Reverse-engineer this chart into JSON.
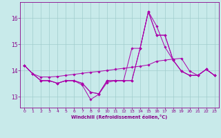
{
  "xlabel": "Windchill (Refroidissement éolien,°C)",
  "bg_color": "#c8eaea",
  "grid_color": "#a0cccc",
  "line_color": "#aa00aa",
  "xlim": [
    -0.5,
    23.5
  ],
  "ylim": [
    12.6,
    16.6
  ],
  "yticks": [
    13,
    14,
    15,
    16
  ],
  "xticks": [
    0,
    1,
    2,
    3,
    4,
    5,
    6,
    7,
    8,
    9,
    10,
    11,
    12,
    13,
    14,
    15,
    16,
    17,
    18,
    19,
    20,
    21,
    22,
    23
  ],
  "series": [
    [
      14.2,
      13.88,
      13.62,
      13.62,
      13.52,
      13.62,
      13.62,
      13.45,
      12.9,
      13.1,
      13.55,
      13.62,
      13.62,
      13.62,
      14.85,
      16.25,
      15.7,
      14.9,
      14.4,
      13.98,
      13.82,
      13.82,
      14.05,
      13.82
    ],
    [
      14.2,
      13.88,
      13.62,
      13.62,
      13.52,
      13.62,
      13.62,
      13.52,
      13.18,
      13.12,
      13.62,
      13.62,
      13.62,
      14.85,
      14.85,
      16.25,
      15.35,
      15.35,
      14.4,
      13.98,
      13.82,
      13.82,
      14.05,
      13.82
    ],
    [
      14.2,
      13.88,
      13.62,
      13.62,
      13.52,
      13.62,
      13.62,
      13.52,
      13.18,
      13.12,
      13.62,
      13.62,
      13.62,
      13.62,
      14.85,
      16.25,
      15.35,
      15.35,
      14.4,
      13.98,
      13.82,
      13.82,
      14.05,
      13.82
    ],
    [
      14.2,
      13.88,
      13.76,
      13.76,
      13.78,
      13.82,
      13.86,
      13.9,
      13.94,
      13.97,
      14.01,
      14.05,
      14.09,
      14.13,
      14.17,
      14.22,
      14.36,
      14.4,
      14.44,
      14.47,
      13.98,
      13.82,
      14.05,
      13.82
    ]
  ]
}
